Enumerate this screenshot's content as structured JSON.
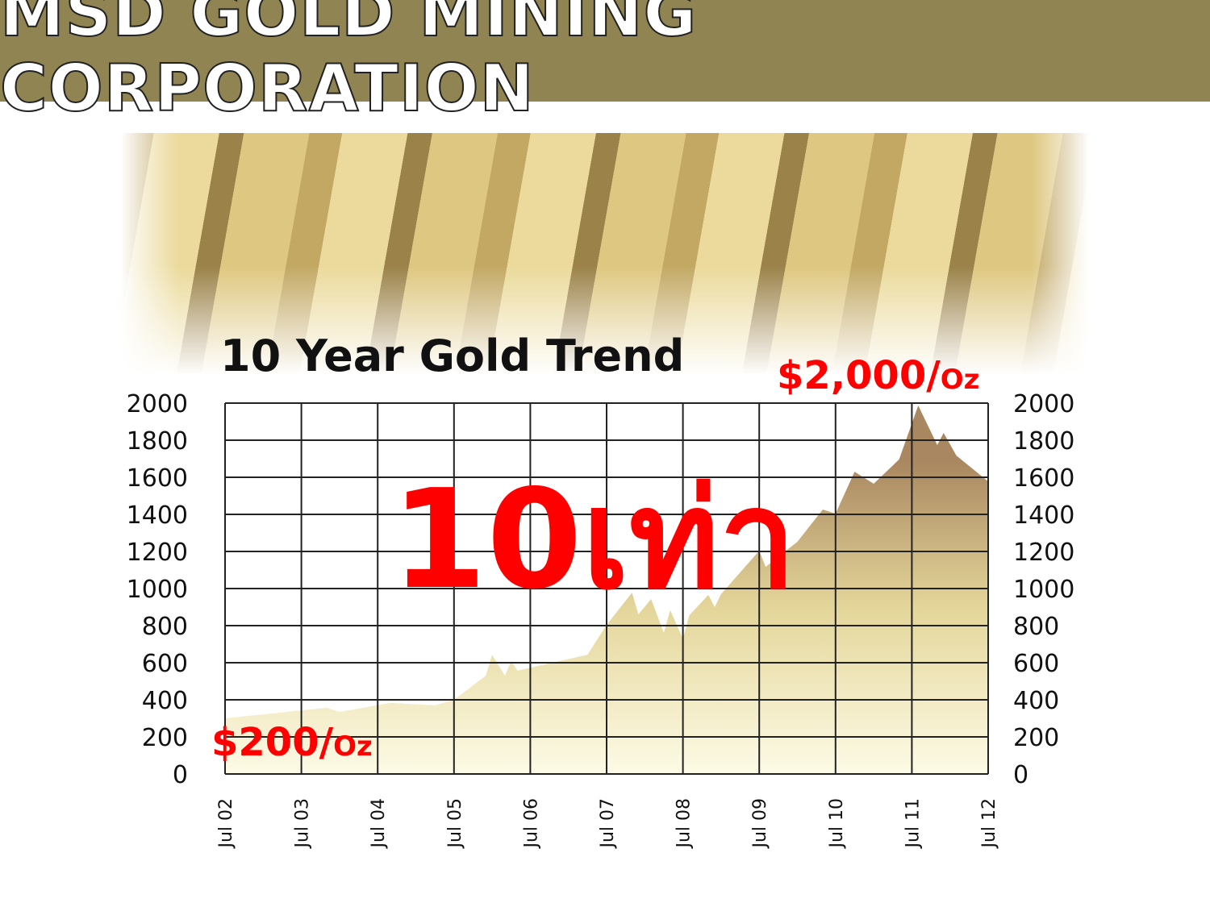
{
  "header": {
    "title": "MSD GOLD MINING CORPORATION",
    "color": "#8f8452"
  },
  "annotations": {
    "low_value": "$200/",
    "low_unit": "Oz",
    "high_value": "$2,000/",
    "high_unit": "Oz",
    "multiplier": "10เท่า"
  },
  "chart_data": {
    "type": "area",
    "title": "10 Year Gold Trend",
    "xlabel": "",
    "ylabel": "",
    "ylim": [
      0,
      2000
    ],
    "yticks": [
      "0",
      "200",
      "400",
      "600",
      "800",
      "1000",
      "1200",
      "1400",
      "1600",
      "1800",
      "2000"
    ],
    "xticks": [
      "Jul 02",
      "Jul 03",
      "Jul 04",
      "Jul 05",
      "Jul 06",
      "Jul 07",
      "Jul 08",
      "Jul 09",
      "Jul 10",
      "Jul 11",
      "Jul 12"
    ],
    "grid": true,
    "fill_colors": [
      "#fdfbe6",
      "#e4d69a",
      "#a98760"
    ],
    "x": [
      "2002-07",
      "2003-11",
      "2004-01",
      "2004-09",
      "2005-04",
      "2005-07",
      "2005-12",
      "2006-01",
      "2006-03",
      "2006-04",
      "2006-05",
      "2007-04",
      "2007-07",
      "2007-11",
      "2007-12",
      "2008-02",
      "2008-04",
      "2008-05",
      "2008-07",
      "2008-08",
      "2008-11",
      "2008-12",
      "2009-01",
      "2009-07",
      "2009-08",
      "2010-01",
      "2010-05",
      "2010-07",
      "2010-10",
      "2011-01",
      "2011-05",
      "2011-08",
      "2011-11",
      "2011-12",
      "2012-02",
      "2012-07"
    ],
    "values": [
      300,
      357,
      335,
      383,
      370,
      400,
      530,
      643,
      530,
      609,
      557,
      643,
      804,
      978,
      861,
      943,
      761,
      883,
      730,
      856,
      965,
      900,
      970,
      1204,
      1117,
      1252,
      1426,
      1404,
      1630,
      1565,
      1696,
      1987,
      1774,
      1839,
      1717,
      1578
    ]
  }
}
